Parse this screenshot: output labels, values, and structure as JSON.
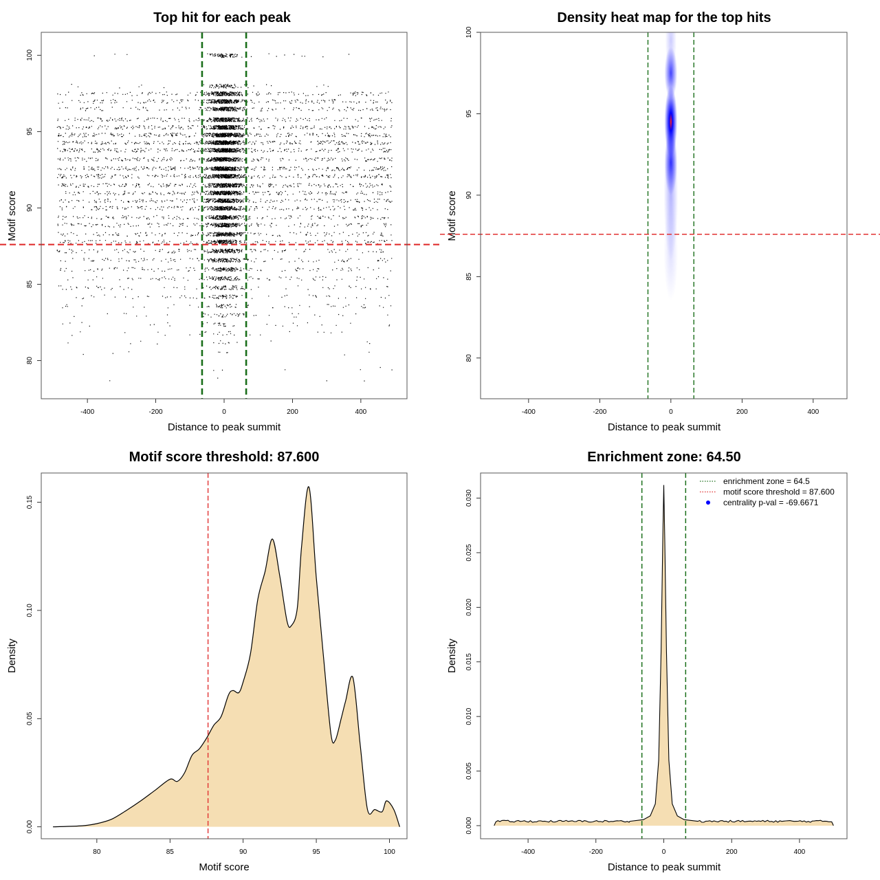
{
  "colors": {
    "threshold_line": "#e03030",
    "zone_line": "#1a6e1a",
    "fill": "#f5deb3",
    "heat_high": "#ff2020",
    "heat_mid": "#0000ff",
    "points": "#000000",
    "legend_dot": "#0000ff"
  },
  "chart_data": [
    {
      "id": "scatter",
      "type": "scatter",
      "title": "Top hit for each peak",
      "xlabel": "Distance to peak summit",
      "ylabel": "Motif score",
      "xlim": [
        -535,
        535
      ],
      "ylim": [
        77.5,
        101.5
      ],
      "xticks": [
        -400,
        -200,
        0,
        200,
        400
      ],
      "yticks": [
        80,
        85,
        90,
        95,
        100
      ],
      "vlines": [
        -64.5,
        64.5
      ],
      "hline": 87.6,
      "point_cloud": {
        "x_range": [
          -490,
          490
        ],
        "score_levels": [
          {
            "y": 100.0,
            "x_range": [
              -490,
              490
            ],
            "weight": 12,
            "center_weight": 80
          },
          {
            "y": 98.0,
            "x_range": [
              -490,
              490
            ],
            "weight": 15,
            "center_weight": 70
          },
          {
            "y": 97.5,
            "x_range": [
              -490,
              490
            ],
            "weight": 120,
            "center_weight": 200
          },
          {
            "y": 97.0,
            "x_range": [
              -490,
              490
            ],
            "weight": 140,
            "center_weight": 220
          },
          {
            "y": 96.5,
            "x_range": [
              -490,
              490
            ],
            "weight": 120,
            "center_weight": 200
          },
          {
            "y": 95.8,
            "x_range": [
              -490,
              490
            ],
            "weight": 160,
            "center_weight": 230
          },
          {
            "y": 95.3,
            "x_range": [
              -490,
              490
            ],
            "weight": 200,
            "center_weight": 260
          },
          {
            "y": 94.8,
            "x_range": [
              -490,
              490
            ],
            "weight": 230,
            "center_weight": 300
          },
          {
            "y": 94.3,
            "x_range": [
              -490,
              490
            ],
            "weight": 240,
            "center_weight": 320
          },
          {
            "y": 93.8,
            "x_range": [
              -490,
              490
            ],
            "weight": 220,
            "center_weight": 300
          },
          {
            "y": 93.2,
            "x_range": [
              -490,
              490
            ],
            "weight": 200,
            "center_weight": 260
          },
          {
            "y": 92.6,
            "x_range": [
              -490,
              490
            ],
            "weight": 230,
            "center_weight": 280
          },
          {
            "y": 92.1,
            "x_range": [
              -490,
              490
            ],
            "weight": 230,
            "center_weight": 280
          },
          {
            "y": 91.5,
            "x_range": [
              -490,
              490
            ],
            "weight": 200,
            "center_weight": 260
          },
          {
            "y": 91.0,
            "x_range": [
              -490,
              490
            ],
            "weight": 190,
            "center_weight": 240
          },
          {
            "y": 90.5,
            "x_range": [
              -490,
              490
            ],
            "weight": 170,
            "center_weight": 220
          },
          {
            "y": 90.0,
            "x_range": [
              -490,
              490
            ],
            "weight": 160,
            "center_weight": 200
          },
          {
            "y": 89.4,
            "x_range": [
              -490,
              490
            ],
            "weight": 150,
            "center_weight": 190
          },
          {
            "y": 88.9,
            "x_range": [
              -490,
              490
            ],
            "weight": 140,
            "center_weight": 180
          },
          {
            "y": 88.3,
            "x_range": [
              -490,
              490
            ],
            "weight": 130,
            "center_weight": 170
          },
          {
            "y": 87.8,
            "x_range": [
              -490,
              490
            ],
            "weight": 120,
            "center_weight": 150
          },
          {
            "y": 87.2,
            "x_range": [
              -490,
              490
            ],
            "weight": 110,
            "center_weight": 130
          },
          {
            "y": 86.6,
            "x_range": [
              -490,
              490
            ],
            "weight": 100,
            "center_weight": 110
          },
          {
            "y": 86.0,
            "x_range": [
              -490,
              490
            ],
            "weight": 90,
            "center_weight": 90
          },
          {
            "y": 85.4,
            "x_range": [
              -490,
              490
            ],
            "weight": 80,
            "center_weight": 70
          },
          {
            "y": 84.8,
            "x_range": [
              -490,
              490
            ],
            "weight": 60,
            "center_weight": 50
          },
          {
            "y": 84.2,
            "x_range": [
              -490,
              490
            ],
            "weight": 50,
            "center_weight": 40
          },
          {
            "y": 83.6,
            "x_range": [
              -490,
              490
            ],
            "weight": 40,
            "center_weight": 30
          },
          {
            "y": 83.0,
            "x_range": [
              -490,
              490
            ],
            "weight": 30,
            "center_weight": 20
          },
          {
            "y": 82.4,
            "x_range": [
              -490,
              490
            ],
            "weight": 22,
            "center_weight": 15
          },
          {
            "y": 81.8,
            "x_range": [
              -490,
              490
            ],
            "weight": 16,
            "center_weight": 10
          },
          {
            "y": 81.2,
            "x_range": [
              -490,
              490
            ],
            "weight": 10,
            "center_weight": 6
          },
          {
            "y": 80.5,
            "x_range": [
              -490,
              490
            ],
            "weight": 6,
            "center_weight": 4
          },
          {
            "y": 79.5,
            "x_range": [
              -490,
              490
            ],
            "weight": 4,
            "center_weight": 2
          },
          {
            "y": 78.8,
            "x_range": [
              -490,
              490
            ],
            "weight": 3,
            "center_weight": 1
          }
        ],
        "center_spread": 25
      }
    },
    {
      "id": "heatmap",
      "type": "heatmap",
      "title": "Density heat map for the top hits",
      "xlabel": "Distance to peak summit",
      "ylabel": "Motif score",
      "xlim": [
        -535,
        495
      ],
      "ylim": [
        77.5,
        100
      ],
      "xticks": [
        -400,
        -200,
        0,
        200,
        400
      ],
      "yticks": [
        80,
        85,
        90,
        95,
        100
      ],
      "vlines": [
        -64.5,
        64.5
      ],
      "hline": 87.6,
      "hotspots": [
        {
          "x": 0,
          "y": 94.5,
          "sx": 9,
          "sy": 1.1,
          "level": 1.0
        },
        {
          "x": 0,
          "y": 97.5,
          "sx": 9,
          "sy": 0.8,
          "level": 0.75
        },
        {
          "x": 0,
          "y": 92.0,
          "sx": 9,
          "sy": 1.0,
          "level": 0.8
        },
        {
          "x": 0,
          "y": 90.0,
          "sx": 10,
          "sy": 2.0,
          "level": 0.3
        },
        {
          "x": 0,
          "y": 99.5,
          "sx": 8,
          "sy": 1.0,
          "level": 0.2
        },
        {
          "x": 0,
          "y": 86.5,
          "sx": 10,
          "sy": 1.5,
          "level": 0.12
        }
      ]
    },
    {
      "id": "score-density",
      "type": "area",
      "title": "Motif score threshold: 87.600",
      "xlabel": "Motif score",
      "ylabel": "Density",
      "xlim": [
        76.2,
        101.2
      ],
      "ylim": [
        -0.0055,
        0.1635
      ],
      "xticks": [
        80,
        85,
        90,
        95,
        100
      ],
      "yticks": [
        0.0,
        0.05,
        0.1,
        0.15
      ],
      "ytick_labels": [
        "0.00",
        "0.05",
        "0.10",
        "0.15"
      ],
      "vline": 87.6,
      "x": [
        77,
        79,
        80,
        81,
        82,
        83,
        84,
        85,
        85.5,
        86,
        86.5,
        87,
        87.5,
        88,
        88.5,
        89,
        89.3,
        89.7,
        90,
        90.5,
        91,
        91.5,
        92,
        92.5,
        93,
        93.3,
        93.7,
        94,
        94.5,
        95,
        95.5,
        96,
        96.3,
        96.7,
        97,
        97.5,
        98,
        98.5,
        99,
        99.5,
        99.8,
        100.3,
        100.7
      ],
      "y": [
        0.0,
        0.0005,
        0.0015,
        0.0035,
        0.0075,
        0.012,
        0.017,
        0.022,
        0.021,
        0.025,
        0.033,
        0.036,
        0.041,
        0.047,
        0.051,
        0.061,
        0.063,
        0.062,
        0.067,
        0.08,
        0.105,
        0.118,
        0.133,
        0.116,
        0.095,
        0.093,
        0.101,
        0.13,
        0.157,
        0.115,
        0.078,
        0.043,
        0.04,
        0.05,
        0.058,
        0.069,
        0.038,
        0.008,
        0.008,
        0.007,
        0.012,
        0.008,
        0.0
      ]
    },
    {
      "id": "distance-density",
      "type": "area",
      "title": "Enrichment zone: 64.50",
      "xlabel": "Distance to peak summit",
      "ylabel": "Density",
      "xlim": [
        -540,
        540
      ],
      "ylim": [
        -0.0012,
        0.0323
      ],
      "xticks": [
        -400,
        -200,
        0,
        200,
        400
      ],
      "yticks": [
        0.0,
        0.005,
        0.01,
        0.015,
        0.02,
        0.025,
        0.03
      ],
      "ytick_labels": [
        "0.000",
        "0.005",
        "0.010",
        "0.015",
        "0.020",
        "0.025",
        "0.030"
      ],
      "vlines": [
        -64.5,
        64.5
      ],
      "x": [
        -500,
        -495,
        -300,
        -100,
        -60,
        -40,
        -25,
        -15,
        -8,
        -3,
        0,
        3,
        8,
        15,
        25,
        40,
        60,
        100,
        300,
        495,
        500
      ],
      "y": [
        0.0,
        0.00035,
        0.0004,
        0.0004,
        0.00055,
        0.0009,
        0.002,
        0.006,
        0.016,
        0.026,
        0.0312,
        0.026,
        0.016,
        0.006,
        0.002,
        0.0009,
        0.00055,
        0.0004,
        0.0004,
        0.00035,
        0.0
      ],
      "legend": [
        {
          "label": "enrichment zone = 64.5",
          "style": "dotted",
          "color": "#1a6e1a"
        },
        {
          "label": "motif score threshold = 87.600",
          "style": "dotted",
          "color": "#e03030"
        },
        {
          "label": "centrality p-val = -69.6671",
          "style": "dot",
          "color": "#0000ff"
        }
      ],
      "legend_position": "top-right"
    }
  ]
}
